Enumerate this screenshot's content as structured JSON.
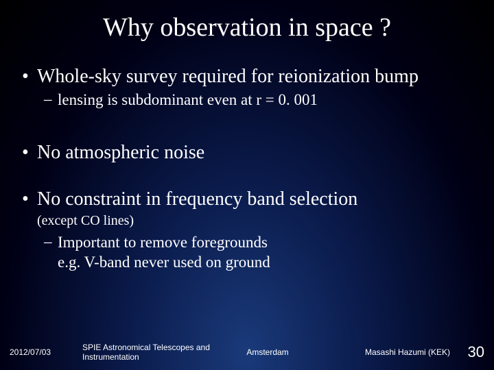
{
  "colors": {
    "background_center": "#1a3a7a",
    "background_mid": "#0a1a4a",
    "background_outer": "#000015",
    "text": "#ffffff"
  },
  "typography": {
    "title_fontsize": 38,
    "bullet_l1_fontsize": 28,
    "bullet_l2_fontsize": 23,
    "paren_fontsize": 20,
    "footer_fontsize": 12,
    "page_number_fontsize": 22,
    "body_font": "Times New Roman",
    "footer_font": "Arial"
  },
  "title": "Why observation in space ?",
  "bullets": [
    {
      "level": 1,
      "marker": "•",
      "text": "Whole-sky survey required for reionization bump",
      "children": [
        {
          "level": 2,
          "marker": "–",
          "text": "lensing is subdominant even at r = 0. 001"
        }
      ]
    },
    {
      "level": 1,
      "marker": "•",
      "text": "No atmospheric noise",
      "children": []
    },
    {
      "level": 1,
      "marker": "•",
      "text": "No constraint in frequency band selection",
      "paren": "(except CO lines)",
      "children": [
        {
          "level": 2,
          "marker": "–",
          "text": "Important to remove foregrounds\ne.g. V-band never used on ground"
        }
      ]
    }
  ],
  "footer": {
    "date": "2012/07/03",
    "conference": "SPIE Astronomical Telescopes and Instrumentation",
    "location": "Amsterdam",
    "author": "Masashi Hazumi (KEK)",
    "page": "30"
  }
}
